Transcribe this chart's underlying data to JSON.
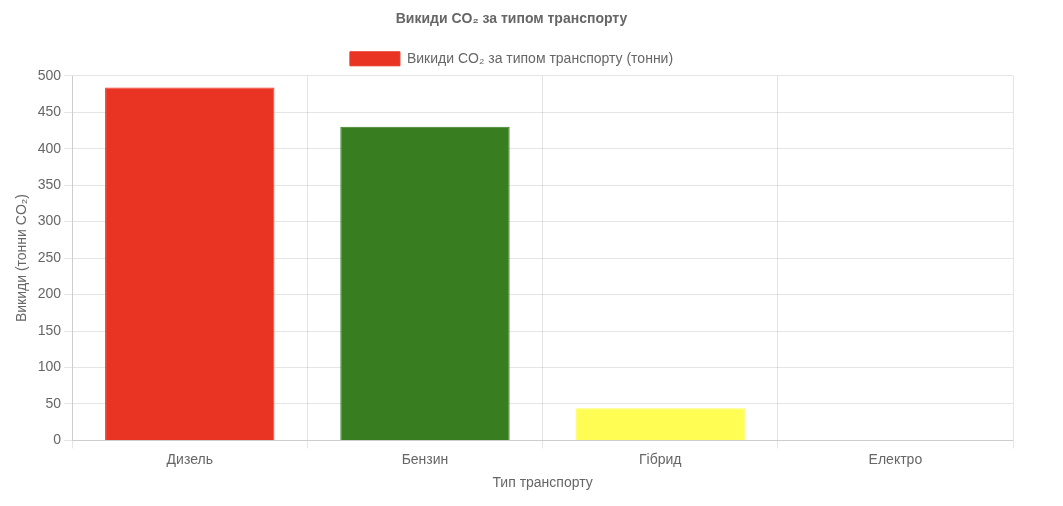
{
  "chart_data": {
    "type": "bar",
    "title": "Викиди CO₂ за типом транспорту",
    "xlabel": "Тип транспорту",
    "ylabel": "Викиди (тонни CO₂)",
    "categories": [
      "Дизель",
      "Бензин",
      "Гібрид",
      "Електро"
    ],
    "series": [
      {
        "name": "Викиди CO₂ за типом транспорту (тонни)",
        "colors": [
          "#e93323",
          "#397d21",
          "#fffd54",
          "#cccccc"
        ],
        "values": [
          484,
          430,
          44,
          0
        ]
      }
    ],
    "ylim": [
      0,
      500
    ],
    "yticks": [
      0,
      50,
      100,
      150,
      200,
      250,
      300,
      350,
      400,
      450,
      500
    ],
    "grid": true,
    "legend": "top"
  }
}
